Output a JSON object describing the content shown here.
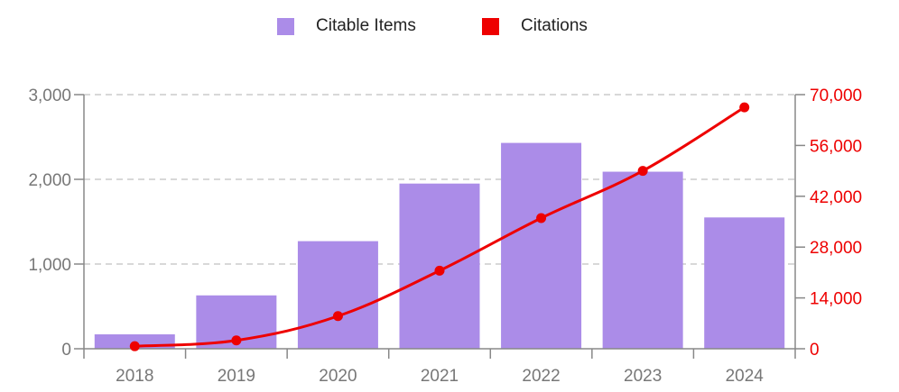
{
  "chart_data": {
    "type": "bar",
    "categories": [
      "2018",
      "2019",
      "2020",
      "2021",
      "2022",
      "2023",
      "2024"
    ],
    "series": [
      {
        "name": "Citable Items",
        "kind": "bar",
        "axis": "left",
        "color": "#ab8ce8",
        "values": [
          170,
          630,
          1270,
          1950,
          2430,
          2090,
          1550
        ]
      },
      {
        "name": "Citations",
        "kind": "line",
        "axis": "right",
        "color": "#ee0000",
        "values": [
          700,
          2300,
          9000,
          21500,
          36000,
          49000,
          66500
        ]
      }
    ],
    "y_left": {
      "range": [
        0,
        3000
      ],
      "ticks": [
        "0",
        "1,000",
        "2,000",
        "3,000"
      ],
      "tick_values": [
        0,
        1000,
        2000,
        3000
      ]
    },
    "y_right": {
      "range": [
        0,
        70000
      ],
      "ticks": [
        "0",
        "14,000",
        "28,000",
        "42,000",
        "56,000",
        "70,000"
      ],
      "tick_values": [
        0,
        14000,
        28000,
        42000,
        56000,
        70000
      ],
      "color": "#ee0000"
    },
    "grid": "dashed-horizontal",
    "legend_position": "top-center",
    "title": "",
    "xlabel": "",
    "ylabel": ""
  },
  "legend": [
    {
      "label": "Citable Items",
      "color": "#ab8ce8"
    },
    {
      "label": "Citations",
      "color": "#ee0000"
    }
  ]
}
